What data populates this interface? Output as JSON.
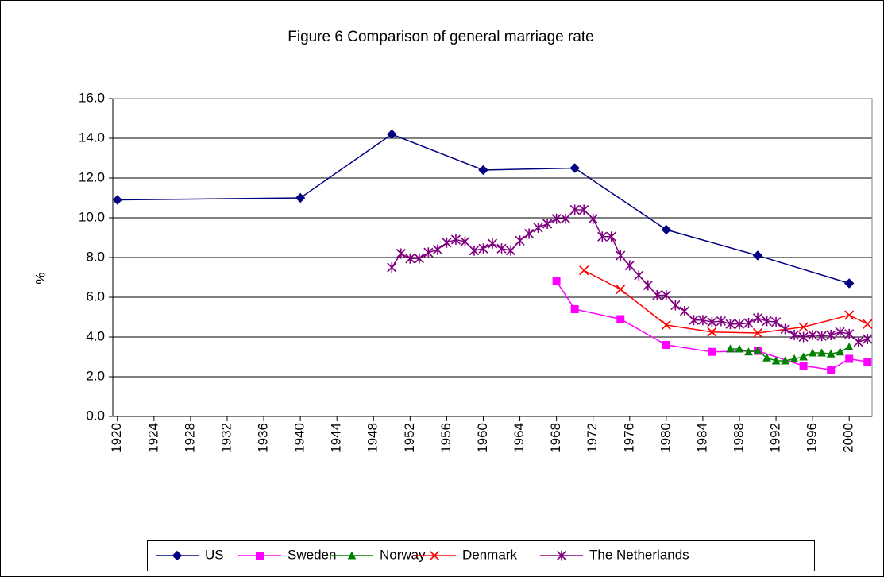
{
  "chart_data": {
    "type": "line",
    "title": "Figure 6 Comparison of general marriage rate",
    "y_label": "%",
    "xlim": [
      1919.5,
      2002.5
    ],
    "xticks": [
      1920,
      1924,
      1928,
      1932,
      1936,
      1940,
      1944,
      1948,
      1952,
      1956,
      1960,
      1964,
      1968,
      1972,
      1976,
      1980,
      1984,
      1988,
      1992,
      1996,
      2000
    ],
    "ylim": [
      0,
      16
    ],
    "yticks": [
      {
        "value": 0,
        "label": "0.0"
      },
      {
        "value": 2,
        "label": "2.0"
      },
      {
        "value": 4,
        "label": "4.0"
      },
      {
        "value": 6,
        "label": "6.0"
      },
      {
        "value": 8,
        "label": "8.0"
      },
      {
        "value": 10,
        "label": "10.0"
      },
      {
        "value": 12,
        "label": "12.0"
      },
      {
        "value": 14,
        "label": "14.0"
      },
      {
        "value": 16,
        "label": "16.0"
      }
    ],
    "grid": true,
    "legend": "bottom",
    "series": [
      {
        "name": "US",
        "color": "#000080",
        "marker": "diamond",
        "x": [
          1920,
          1940,
          1950,
          1960,
          1970,
          1980,
          1990,
          2000
        ],
        "values": [
          10.9,
          11.0,
          14.2,
          12.4,
          12.5,
          9.4,
          8.1,
          6.7
        ]
      },
      {
        "name": "Sweden",
        "color": "#ff00ff",
        "marker": "square",
        "x": [
          1968,
          1970,
          1975,
          1980,
          1985,
          1990,
          1995,
          1998,
          2000,
          2002
        ],
        "values": [
          6.8,
          5.4,
          4.9,
          3.6,
          3.25,
          3.3,
          2.55,
          2.35,
          2.9,
          2.75
        ]
      },
      {
        "name": "Norway",
        "color": "#008000",
        "marker": "triangle",
        "x": [
          1987,
          1988,
          1989,
          1990,
          1991,
          1992,
          1993,
          1994,
          1995,
          1996,
          1997,
          1998,
          1999,
          2000
        ],
        "values": [
          3.4,
          3.4,
          3.25,
          3.3,
          2.95,
          2.8,
          2.8,
          2.9,
          3.0,
          3.2,
          3.2,
          3.15,
          3.25,
          3.5
        ]
      },
      {
        "name": "Denmark",
        "color": "#ff0000",
        "marker": "x",
        "x": [
          1971,
          1975,
          1980,
          1985,
          1990,
          1995,
          2000,
          2002
        ],
        "values": [
          7.35,
          6.4,
          4.6,
          4.25,
          4.2,
          4.5,
          5.1,
          4.65
        ]
      },
      {
        "name": "The Netherlands",
        "color": "#800080",
        "marker": "star",
        "x": [
          1950,
          1951,
          1952,
          1953,
          1954,
          1955,
          1956,
          1957,
          1958,
          1959,
          1960,
          1961,
          1962,
          1963,
          1964,
          1965,
          1966,
          1967,
          1968,
          1969,
          1970,
          1971,
          1972,
          1973,
          1974,
          1975,
          1976,
          1977,
          1978,
          1979,
          1980,
          1981,
          1982,
          1983,
          1984,
          1985,
          1986,
          1987,
          1988,
          1989,
          1990,
          1991,
          1992,
          1993,
          1994,
          1995,
          1996,
          1997,
          1998,
          1999,
          2000,
          2001,
          2002
        ],
        "values": [
          7.5,
          8.2,
          7.95,
          7.95,
          8.25,
          8.4,
          8.75,
          8.9,
          8.8,
          8.35,
          8.45,
          8.7,
          8.45,
          8.35,
          8.85,
          9.2,
          9.5,
          9.7,
          9.95,
          9.95,
          10.4,
          10.4,
          9.95,
          9.05,
          9.05,
          8.1,
          7.6,
          7.1,
          6.6,
          6.1,
          6.1,
          5.6,
          5.3,
          4.85,
          4.85,
          4.75,
          4.8,
          4.65,
          4.65,
          4.7,
          4.95,
          4.8,
          4.75,
          4.4,
          4.1,
          4.0,
          4.1,
          4.05,
          4.1,
          4.25,
          4.15,
          3.75,
          3.9
        ]
      }
    ]
  }
}
